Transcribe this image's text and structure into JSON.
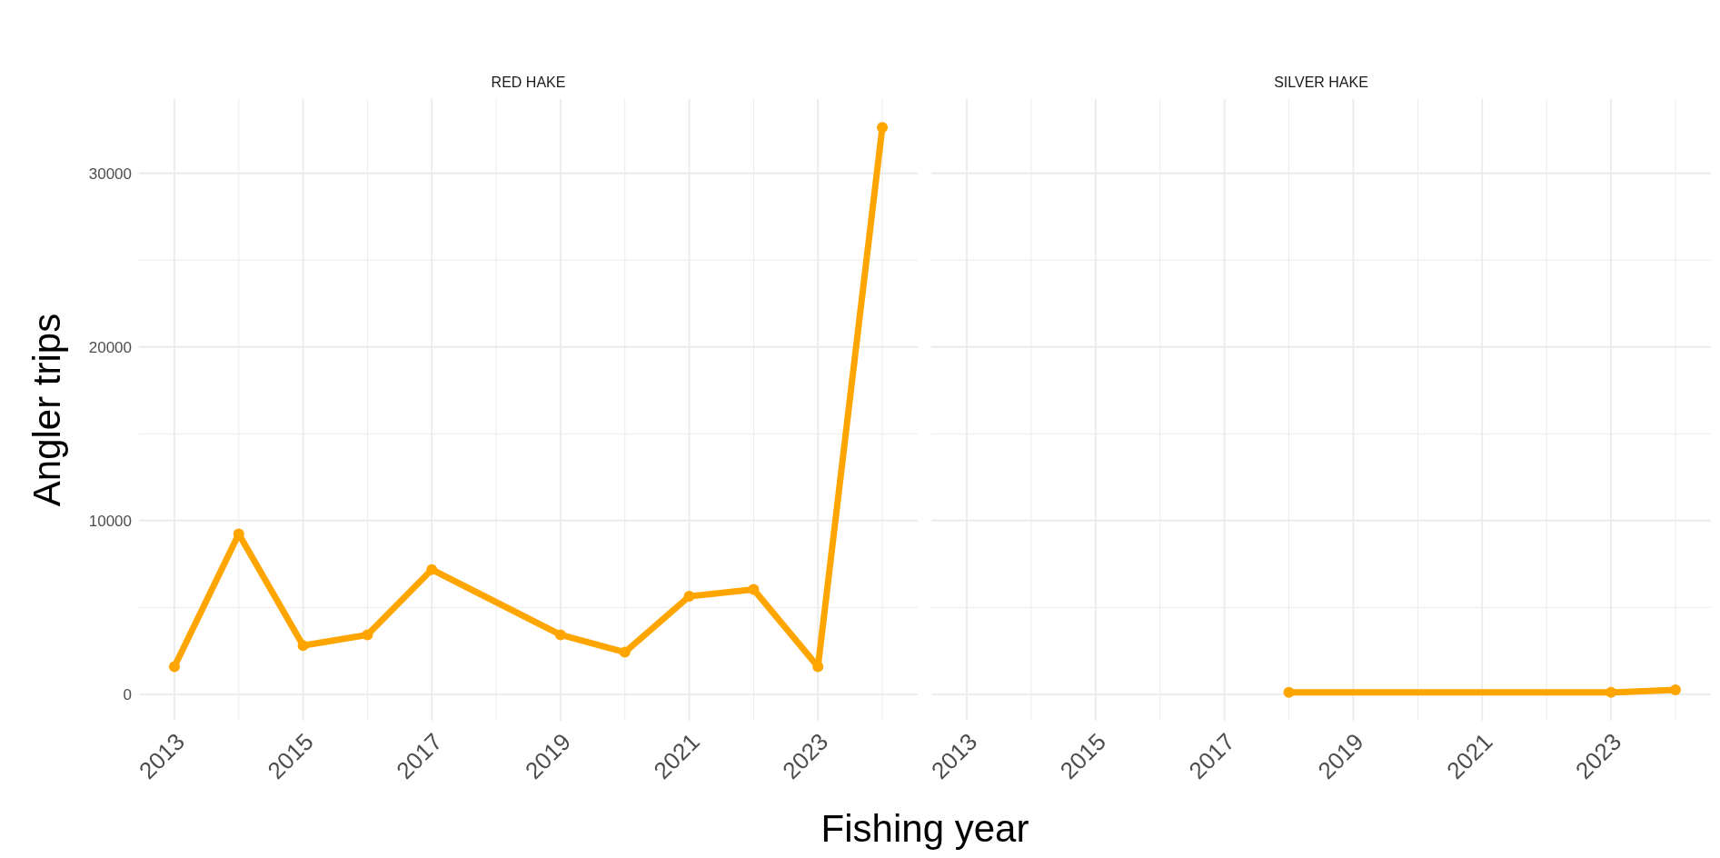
{
  "chart_data": [
    {
      "type": "line",
      "title": "RED HAKE",
      "xlabel": "Fishing year",
      "ylabel": "Angler trips",
      "x": [
        2013,
        2014,
        2015,
        2016,
        2017,
        2019,
        2020,
        2021,
        2022,
        2023,
        2024
      ],
      "series": [
        {
          "color": "#ffa500",
          "values": [
            1580,
            9230,
            2800,
            3420,
            7180,
            3420,
            2420,
            5640,
            6040,
            1580,
            32650
          ]
        }
      ],
      "xlim": [
        2012.45,
        2024.55
      ],
      "ylim": [
        -1530,
        34280
      ],
      "xticks": [
        2013,
        {
          "value": 2014,
          "label": null
        },
        2015,
        {
          "value": 2016,
          "label": null
        },
        2017,
        {
          "value": 2018,
          "label": null
        },
        2019,
        {
          "value": 2020,
          "label": null
        },
        2021,
        {
          "value": 2022,
          "label": null
        },
        2023,
        {
          "value": 2024,
          "label": null
        }
      ],
      "yticks": [
        0,
        {
          "value": 5000,
          "label": null
        },
        10000,
        {
          "value": 15000,
          "label": null
        },
        20000,
        {
          "value": 25000,
          "label": null
        },
        30000
      ],
      "grid": true,
      "marker": "circle",
      "line_style": "solid"
    },
    {
      "type": "line",
      "title": "SILVER HAKE",
      "x": [
        2018,
        2023,
        2024
      ],
      "series": [
        {
          "color": "#ffa500",
          "values": [
            100,
            100,
            250
          ]
        }
      ],
      "xlim": [
        2012.45,
        2024.55
      ],
      "ylim": [
        -1530,
        34280
      ],
      "xticks": [
        2013,
        {
          "value": 2014,
          "label": null
        },
        2015,
        {
          "value": 2016,
          "label": null
        },
        2017,
        {
          "value": 2018,
          "label": null
        },
        2019,
        {
          "value": 2020,
          "label": null
        },
        2021,
        {
          "value": 2022,
          "label": null
        },
        2023,
        {
          "value": 2024,
          "label": null
        }
      ],
      "yticks": [
        0,
        {
          "value": 5000,
          "label": null
        },
        10000,
        {
          "value": 15000,
          "label": null
        },
        20000,
        {
          "value": 25000,
          "label": null
        },
        30000
      ],
      "tick_labels": "x",
      "grid": true,
      "marker": "circle",
      "line_style": "solid"
    }
  ]
}
